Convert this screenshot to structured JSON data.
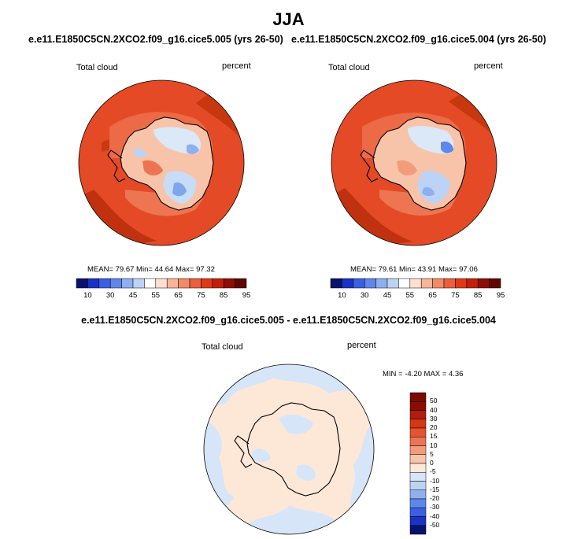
{
  "title": "JJA",
  "panels": [
    {
      "run": "e.e11.E1850C5CN.2XCO2.f09_g16.cice5.005 (yrs 26-50)",
      "field_label": "Total cloud",
      "units_label": "percent",
      "stats": "MEAN=  79.67  Min=  44.64  Max=  97.32"
    },
    {
      "run": "e.e11.E1850C5CN.2XCO2.f09_g16.cice5.004 (yrs 26-50)",
      "field_label": "Total cloud",
      "units_label": "percent",
      "stats": "MEAN=  79.61  Min=  43.91  Max=  97.06"
    }
  ],
  "colorbar": {
    "colors": [
      "#08136e",
      "#1b33c4",
      "#3a5fe0",
      "#5f87ea",
      "#8fb0ef",
      "#bdd3f6",
      "#ffffff",
      "#fde0cf",
      "#f8b59a",
      "#f28a68",
      "#ea5f3c",
      "#df3a17",
      "#c21f0b",
      "#8f0d05",
      "#5f0802"
    ],
    "ticks": [
      "10",
      "30",
      "45",
      "55",
      "65",
      "75",
      "85",
      "95"
    ]
  },
  "difference": {
    "title": "e.e11.E1850C5CN.2XCO2.f09_g16.cice5.005 - e.e11.E1850C5CN.2XCO2.f09_g16.cice5.004",
    "field_label": "Total cloud",
    "units_label": "percent",
    "minmax": "MIN =  -4.20 MAX =   4.36",
    "colorbar_colors": [
      "#08136e",
      "#1b33c4",
      "#3a5fe0",
      "#5f87ea",
      "#8fb0ef",
      "#bdd3f6",
      "#d6e6f8",
      "#fde8d8",
      "#f8c4ac",
      "#f29c7c",
      "#ec7453",
      "#e5532f",
      "#d43617",
      "#b21d0b",
      "#8a0d04"
    ],
    "colorbar_ticks": [
      "50",
      "40",
      "30",
      "20",
      "15",
      "10",
      "5",
      "0",
      "-5",
      "-10",
      "-15",
      "-20",
      "-30",
      "-40",
      "-50"
    ]
  }
}
